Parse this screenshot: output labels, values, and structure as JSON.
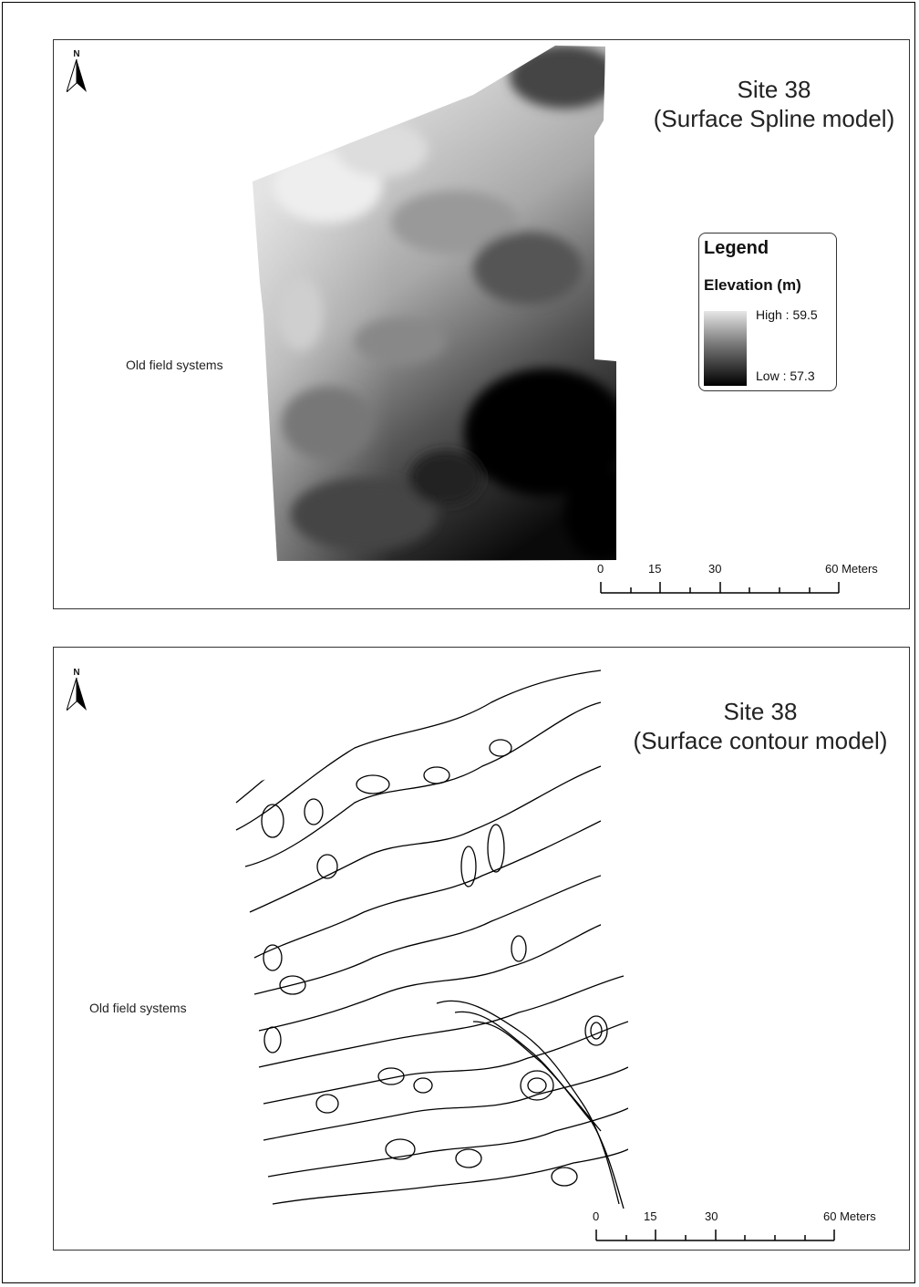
{
  "panels": [
    {
      "title_line1": "Site 38",
      "title_line2": "(Surface Spline model)",
      "north_label": "N",
      "north_icon": "north-arrow-icon",
      "site_label": "Old field systems",
      "legend": {
        "title": "Legend",
        "subtitle": "Elevation (m)",
        "high_label": "High : 59.5",
        "low_label": "Low : 57.3",
        "high_color": "#e6e6e6",
        "low_color": "#000000"
      },
      "scale": {
        "labels": [
          "0",
          "15",
          "30",
          "60 Meters"
        ]
      }
    },
    {
      "title_line1": "Site 38",
      "title_line2": "(Surface contour model)",
      "north_label": "N",
      "north_icon": "north-arrow-icon",
      "site_label": "Old field systems",
      "scale": {
        "labels": [
          "0",
          "15",
          "30",
          "60 Meters"
        ]
      }
    }
  ]
}
